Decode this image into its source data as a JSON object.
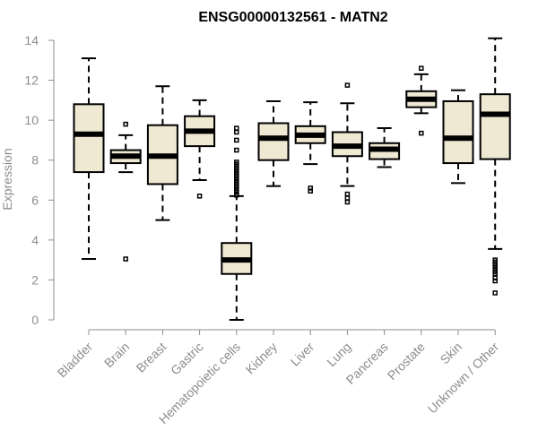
{
  "chart_data": {
    "type": "boxplot",
    "title": "ENSG00000132561 - MATN2",
    "xlabel": "",
    "ylabel": "Expression",
    "ylim": [
      0,
      14
    ],
    "yticks": [
      0,
      2,
      4,
      6,
      8,
      10,
      12,
      14
    ],
    "box_color": "#efe8d2",
    "categories": [
      "Bladder",
      "Brain",
      "Breast",
      "Gastric",
      "Hematopoietic cells",
      "Kidney",
      "Liver",
      "Lung",
      "Pancreas",
      "Prostate",
      "Skin",
      "Unknown / Other"
    ],
    "series": [
      {
        "name": "Bladder",
        "whisker_low": 3.05,
        "q1": 7.4,
        "median": 9.3,
        "q3": 10.8,
        "whisker_high": 13.1,
        "outliers": []
      },
      {
        "name": "Brain",
        "whisker_low": 7.4,
        "q1": 7.85,
        "median": 8.2,
        "q3": 8.5,
        "whisker_high": 9.25,
        "outliers": [
          9.8,
          3.05
        ]
      },
      {
        "name": "Breast",
        "whisker_low": 5.0,
        "q1": 6.8,
        "median": 8.2,
        "q3": 9.75,
        "whisker_high": 11.7,
        "outliers": []
      },
      {
        "name": "Gastric",
        "whisker_low": 7.0,
        "q1": 8.7,
        "median": 9.45,
        "q3": 10.2,
        "whisker_high": 11.0,
        "outliers": [
          6.2
        ]
      },
      {
        "name": "Hematopoietic cells",
        "whisker_low": 0.0,
        "q1": 2.3,
        "median": 3.0,
        "q3": 3.85,
        "whisker_high": 6.2,
        "outliers": [
          9.6,
          9.4,
          9.0,
          8.5,
          7.9,
          7.8,
          7.7,
          7.6,
          7.5,
          7.4,
          7.3,
          7.2,
          7.1,
          7.0,
          6.9,
          6.8,
          6.7,
          6.6,
          6.5,
          6.4,
          6.3,
          6.25
        ]
      },
      {
        "name": "Kidney",
        "whisker_low": 6.7,
        "q1": 8.0,
        "median": 9.1,
        "q3": 9.85,
        "whisker_high": 10.95,
        "outliers": []
      },
      {
        "name": "Liver",
        "whisker_low": 7.8,
        "q1": 8.85,
        "median": 9.25,
        "q3": 9.7,
        "whisker_high": 10.9,
        "outliers": [
          6.6,
          6.45
        ]
      },
      {
        "name": "Lung",
        "whisker_low": 6.7,
        "q1": 8.2,
        "median": 8.7,
        "q3": 9.4,
        "whisker_high": 10.85,
        "outliers": [
          11.75,
          6.3,
          6.1,
          5.9
        ]
      },
      {
        "name": "Pancreas",
        "whisker_low": 7.65,
        "q1": 8.05,
        "median": 8.55,
        "q3": 8.85,
        "whisker_high": 9.6,
        "outliers": []
      },
      {
        "name": "Prostate",
        "whisker_low": 10.35,
        "q1": 10.65,
        "median": 11.05,
        "q3": 11.45,
        "whisker_high": 12.3,
        "outliers": [
          12.6,
          9.35
        ]
      },
      {
        "name": "Skin",
        "whisker_low": 6.85,
        "q1": 7.85,
        "median": 9.1,
        "q3": 10.95,
        "whisker_high": 11.5,
        "outliers": []
      },
      {
        "name": "Unknown / Other",
        "whisker_low": 3.55,
        "q1": 8.05,
        "median": 10.3,
        "q3": 11.3,
        "whisker_high": 14.1,
        "outliers": [
          3.0,
          2.9,
          2.8,
          2.7,
          2.6,
          2.5,
          2.4,
          2.3,
          2.1,
          1.95,
          1.35
        ]
      }
    ]
  }
}
